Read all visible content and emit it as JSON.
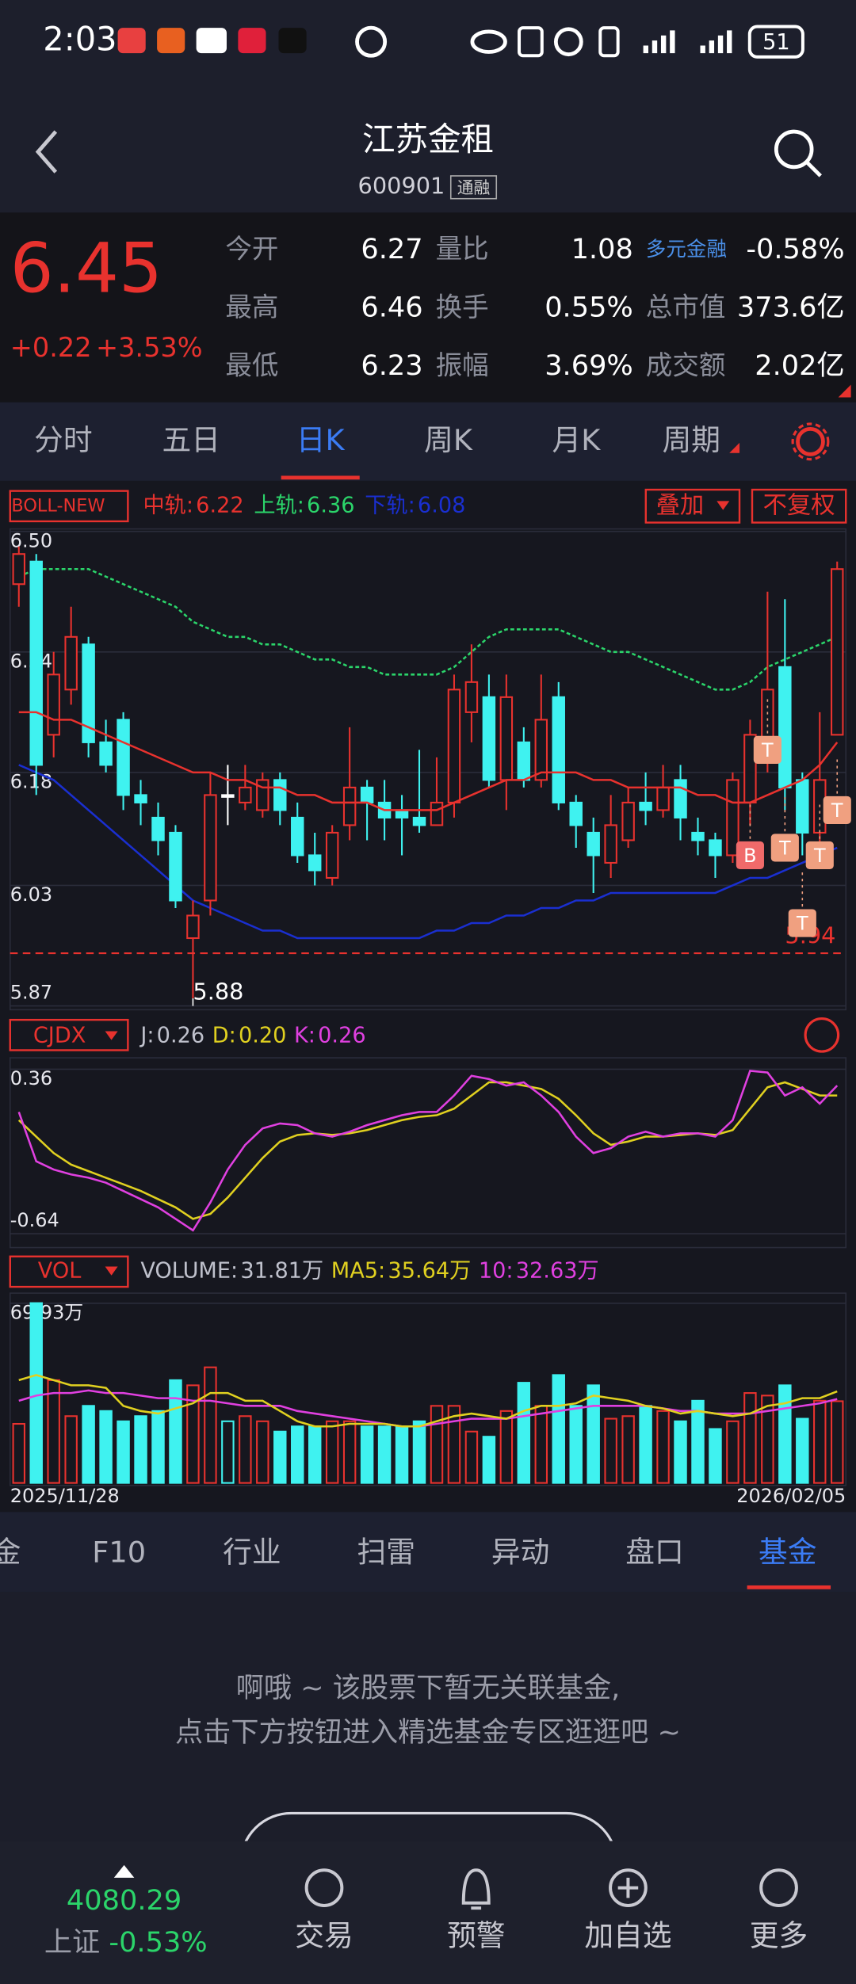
{
  "status_bar": {
    "time": "2:03",
    "battery": "51"
  },
  "header": {
    "title": "江苏金租",
    "code": "600901",
    "badge": "通融"
  },
  "quote": {
    "price": "6.45",
    "change": "+0.22",
    "change_pct": "+3.53%",
    "fields": [
      {
        "label": "今开",
        "value": "6.27"
      },
      {
        "label": "量比",
        "value": "1.08"
      },
      {
        "label": "多元金融",
        "value": "-0.58%"
      },
      {
        "label": "最高",
        "value": "6.46"
      },
      {
        "label": "换手",
        "value": "0.55%"
      },
      {
        "label": "总市值",
        "value": "373.6亿"
      },
      {
        "label": "最低",
        "value": "6.23"
      },
      {
        "label": "振幅",
        "value": "3.69%"
      },
      {
        "label": "成交额",
        "value": "2.02亿"
      }
    ]
  },
  "tabs": {
    "items": [
      "分时",
      "五日",
      "日K",
      "周K",
      "月K",
      "周期"
    ],
    "active": 2
  },
  "kline": {
    "type": "candlestick",
    "indicator": "BOLL-NEW",
    "legend": [
      {
        "label": "中轨:",
        "value": "6.22",
        "color": "#e8322e"
      },
      {
        "label": "上轨:",
        "value": "6.36",
        "color": "#2bd46a"
      },
      {
        "label": "下轨:",
        "value": "6.08",
        "color": "#1a2fd0"
      }
    ],
    "buttons": [
      "叠加",
      "不复权"
    ],
    "ylim": [
      5.87,
      6.5
    ],
    "yticks": [
      {
        "value": 6.5,
        "label": "6.50"
      },
      6.34,
      6.18,
      6.03,
      5.87
    ],
    "up_color": "#e8322e",
    "down_color": "#3ff2f0",
    "flat_color": "#ffffff",
    "open": [
      6.43,
      6.46,
      6.23,
      6.29,
      6.35,
      6.22,
      6.25,
      6.15,
      6.12,
      6.1,
      5.96,
      6.01,
      6.15,
      6.14,
      6.13,
      6.17,
      6.12,
      6.07,
      6.04,
      6.11,
      6.16,
      6.14,
      6.13,
      6.12,
      6.11,
      6.14,
      6.26,
      6.28,
      6.17,
      6.22,
      6.17,
      6.28,
      6.14,
      6.1,
      6.06,
      6.09,
      6.14,
      6.13,
      6.17,
      6.1,
      6.09,
      6.07,
      6.14,
      6.2,
      6.32,
      6.17,
      6.1,
      6.23
    ],
    "high": [
      6.48,
      6.47,
      6.34,
      6.4,
      6.36,
      6.25,
      6.26,
      6.17,
      6.14,
      6.11,
      6.01,
      6.18,
      6.19,
      6.19,
      6.18,
      6.18,
      6.14,
      6.1,
      6.11,
      6.24,
      6.17,
      6.17,
      6.15,
      6.21,
      6.2,
      6.31,
      6.35,
      6.31,
      6.31,
      6.24,
      6.31,
      6.3,
      6.15,
      6.12,
      6.15,
      6.16,
      6.18,
      6.19,
      6.19,
      6.12,
      6.1,
      6.18,
      6.25,
      6.42,
      6.41,
      6.18,
      6.26,
      6.46
    ],
    "low": [
      6.4,
      6.15,
      6.2,
      6.27,
      6.2,
      6.18,
      6.13,
      6.11,
      6.07,
      6.0,
      5.88,
      5.99,
      6.11,
      6.13,
      6.12,
      6.11,
      6.06,
      6.03,
      6.03,
      6.09,
      6.09,
      6.09,
      6.07,
      6.1,
      6.11,
      6.12,
      6.22,
      6.16,
      6.13,
      6.16,
      6.16,
      6.13,
      6.08,
      6.02,
      6.04,
      6.08,
      6.11,
      6.12,
      6.09,
      6.07,
      6.04,
      6.06,
      6.11,
      6.18,
      6.13,
      6.07,
      6.08,
      6.23
    ],
    "close": [
      6.47,
      6.19,
      6.31,
      6.36,
      6.22,
      6.19,
      6.15,
      6.14,
      6.09,
      6.01,
      5.99,
      6.15,
      6.15,
      6.16,
      6.17,
      6.13,
      6.07,
      6.05,
      6.1,
      6.16,
      6.14,
      6.12,
      6.12,
      6.11,
      6.14,
      6.29,
      6.3,
      6.17,
      6.28,
      6.17,
      6.25,
      6.14,
      6.11,
      6.07,
      6.11,
      6.14,
      6.13,
      6.16,
      6.12,
      6.09,
      6.07,
      6.17,
      6.23,
      6.29,
      6.16,
      6.1,
      6.17,
      6.45
    ],
    "middle": [
      6.26,
      6.26,
      6.25,
      6.25,
      6.24,
      6.23,
      6.22,
      6.21,
      6.2,
      6.19,
      6.18,
      6.18,
      6.17,
      6.17,
      6.16,
      6.16,
      6.15,
      6.15,
      6.14,
      6.14,
      6.14,
      6.13,
      6.13,
      6.13,
      6.13,
      6.14,
      6.15,
      6.16,
      6.17,
      6.17,
      6.18,
      6.18,
      6.18,
      6.17,
      6.17,
      6.16,
      6.16,
      6.16,
      6.16,
      6.15,
      6.15,
      6.14,
      6.14,
      6.15,
      6.16,
      6.17,
      6.19,
      6.22
    ],
    "upper": [
      6.44,
      6.45,
      6.45,
      6.45,
      6.45,
      6.44,
      6.43,
      6.42,
      6.41,
      6.4,
      6.38,
      6.37,
      6.36,
      6.36,
      6.35,
      6.35,
      6.34,
      6.33,
      6.33,
      6.32,
      6.32,
      6.31,
      6.31,
      6.31,
      6.31,
      6.32,
      6.34,
      6.36,
      6.37,
      6.37,
      6.37,
      6.37,
      6.36,
      6.35,
      6.34,
      6.34,
      6.33,
      6.32,
      6.31,
      6.3,
      6.29,
      6.29,
      6.3,
      6.32,
      6.33,
      6.34,
      6.35,
      6.36
    ],
    "lower": [
      6.19,
      6.18,
      6.17,
      6.15,
      6.13,
      6.11,
      6.09,
      6.07,
      6.05,
      6.03,
      6.01,
      6.0,
      5.99,
      5.98,
      5.97,
      5.97,
      5.96,
      5.96,
      5.96,
      5.96,
      5.96,
      5.96,
      5.96,
      5.96,
      5.97,
      5.97,
      5.98,
      5.98,
      5.99,
      5.99,
      6.0,
      6.0,
      6.01,
      6.01,
      6.02,
      6.02,
      6.02,
      6.02,
      6.02,
      6.02,
      6.02,
      6.03,
      6.04,
      6.04,
      6.05,
      6.06,
      6.07,
      6.08
    ],
    "low_label": {
      "value": 5.88,
      "index": 10
    },
    "ref_line": {
      "value": 5.94,
      "label": "5.94"
    },
    "signals": [
      {
        "label": "B",
        "index": 42,
        "price": 6.07
      },
      {
        "label": "T",
        "index": 43,
        "price": 6.21
      },
      {
        "label": "T",
        "index": 44,
        "price": 6.08
      },
      {
        "label": "T",
        "index": 45,
        "price": 5.98
      },
      {
        "label": "T",
        "index": 46,
        "price": 6.07
      },
      {
        "label": "T",
        "index": 47,
        "price": 6.13
      }
    ],
    "date_start": "2025/11/28",
    "date_end": "2026/02/05"
  },
  "kdj": {
    "indicator": "CJDX",
    "legend": [
      {
        "label": "J:",
        "value": "0.26",
        "color": "#bfc1cc"
      },
      {
        "label": "D:",
        "value": "0.20",
        "color": "#e0d020"
      },
      {
        "label": "K:",
        "value": "0.26",
        "color": "#e040e0"
      }
    ],
    "ylim": [
      -0.64,
      0.36
    ],
    "yticks": [
      0.36,
      -0.64
    ],
    "k": [
      0.1,
      -0.2,
      -0.25,
      -0.28,
      -0.3,
      -0.33,
      -0.38,
      -0.43,
      -0.48,
      -0.55,
      -0.62,
      -0.45,
      -0.25,
      -0.1,
      0.0,
      0.03,
      0.02,
      -0.03,
      -0.05,
      -0.02,
      0.02,
      0.05,
      0.08,
      0.1,
      0.1,
      0.2,
      0.32,
      0.3,
      0.26,
      0.28,
      0.2,
      0.1,
      -0.05,
      -0.15,
      -0.12,
      -0.05,
      -0.02,
      -0.05,
      -0.03,
      -0.03,
      -0.05,
      0.05,
      0.35,
      0.34,
      0.2,
      0.25,
      0.15,
      0.26
    ],
    "d": [
      0.05,
      -0.05,
      -0.15,
      -0.22,
      -0.26,
      -0.3,
      -0.34,
      -0.38,
      -0.43,
      -0.48,
      -0.55,
      -0.52,
      -0.42,
      -0.3,
      -0.18,
      -0.08,
      -0.04,
      -0.03,
      -0.04,
      -0.03,
      -0.01,
      0.02,
      0.05,
      0.07,
      0.08,
      0.12,
      0.2,
      0.28,
      0.28,
      0.26,
      0.24,
      0.18,
      0.08,
      -0.03,
      -0.1,
      -0.08,
      -0.05,
      -0.05,
      -0.04,
      -0.03,
      -0.04,
      -0.01,
      0.12,
      0.25,
      0.28,
      0.24,
      0.2,
      0.2
    ],
    "k_color": "#e040e0",
    "d_color": "#e0d020"
  },
  "vol": {
    "indicator": "VOL",
    "legend": [
      {
        "label": "VOLUME:",
        "value": "31.81万",
        "color": "#bfc1cc"
      },
      {
        "label": "MA5:",
        "value": "35.64万",
        "color": "#e0d020"
      },
      {
        "label": "10:",
        "value": "32.63万",
        "color": "#e040e0"
      }
    ],
    "ylim": [
      0,
      69.93
    ],
    "yticks": [
      {
        "value": 69.93,
        "label": "69.93万"
      }
    ],
    "values": [
      23,
      70,
      40,
      26,
      30,
      28,
      24,
      26,
      28,
      40,
      38,
      45,
      24,
      26,
      24,
      20,
      22,
      22,
      24,
      24,
      22,
      22,
      22,
      24,
      30,
      30,
      20,
      18,
      28,
      39,
      30,
      42,
      30,
      38,
      25,
      26,
      30,
      28,
      24,
      32,
      21,
      24,
      35,
      34,
      38,
      25,
      32,
      31.81
    ],
    "ma5": [
      40,
      42,
      40,
      38,
      38,
      37,
      30,
      28,
      27,
      29,
      31,
      35,
      35,
      32,
      32,
      28,
      24,
      22,
      22,
      23,
      23,
      23,
      22,
      22,
      24,
      26,
      27,
      26,
      25,
      28,
      30,
      30,
      31,
      34,
      33,
      32,
      30,
      29,
      27,
      28,
      27,
      26,
      27,
      30,
      31,
      33,
      33,
      35.64
    ],
    "ma10": [
      32,
      34,
      35,
      35,
      36,
      35,
      35,
      34,
      33,
      33,
      32,
      32,
      31,
      30,
      30,
      30,
      28,
      27,
      26,
      25,
      24,
      23,
      22,
      22,
      23,
      24,
      25,
      25,
      25,
      26,
      27,
      28,
      29,
      30,
      30,
      30,
      30,
      29,
      28,
      28,
      27,
      27,
      27,
      28,
      29,
      30,
      31,
      32.63
    ],
    "ma5_color": "#e0d020",
    "ma10_color": "#e040e0"
  },
  "bottom_tabs": {
    "items": [
      "金",
      "F10",
      "行业",
      "扫雷",
      "异动",
      "盘口",
      "基金"
    ],
    "active": 6
  },
  "empty_message": [
    "啊哦 ~ 该股票下暂无关联基金,",
    "点击下方按钮进入精选基金专区逛逛吧 ~"
  ],
  "nav": {
    "index_value": "4080.29",
    "index_name": "上证",
    "index_change": "-0.53%",
    "items": [
      "交易",
      "预警",
      "加自选",
      "更多"
    ]
  }
}
